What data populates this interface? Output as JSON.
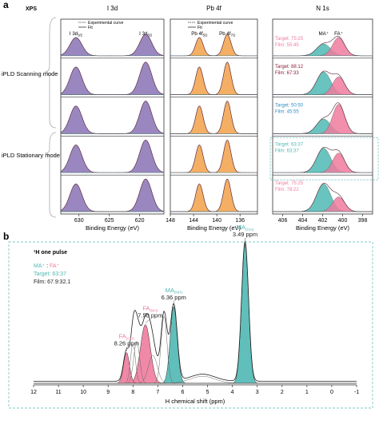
{
  "panel_a": {
    "label": "a",
    "technique": "XPS",
    "mode_labels": [
      "iPLD Scanning mode",
      "iPLD Stationary mode"
    ]
  },
  "panel_b": {
    "label": "b",
    "technique": "¹H one pulse"
  },
  "colors": {
    "purple": "#8a72b5",
    "orange": "#f2a14a",
    "teal": "#4fb8b3",
    "pink": "#ee7b9d",
    "target_blue": "#2f8fc6",
    "maroon": "#8a1f3a",
    "dashed_border": "#7fc9c5"
  },
  "chart_data": [
    {
      "type": "line",
      "name": "I 3d",
      "title": "I 3d",
      "xlabel": "Binding Energy (eV)",
      "xlim": [
        633,
        616
      ],
      "xticks": [
        630,
        625,
        620
      ],
      "legend": [
        "Experimental curve",
        "Fit"
      ],
      "peak_labels": [
        {
          "text": "I 3d",
          "sub": "3/2",
          "x": 630.5
        },
        {
          "text": "I 3d",
          "sub": "5/2",
          "x": 619.0
        }
      ],
      "peaks": [
        {
          "center": 630.5,
          "height": 0.85,
          "width": 1.0,
          "fill": "#8a72b5"
        },
        {
          "center": 619.0,
          "height": 1.0,
          "width": 1.0,
          "fill": "#8a72b5"
        }
      ],
      "rows": 5
    },
    {
      "type": "line",
      "name": "Pb 4f",
      "title": "Pb 4f",
      "xlabel": "Binding Energy (eV)",
      "xlim": [
        148,
        133
      ],
      "xticks": [
        148,
        144,
        140,
        136
      ],
      "legend": [
        "Experimental curve",
        "Fit"
      ],
      "peak_labels": [
        {
          "text": "Pb 4f",
          "sub": "5/2",
          "x": 143.0
        },
        {
          "text": "Pb 4f",
          "sub": "7/2",
          "x": 138.2
        }
      ],
      "peaks": [
        {
          "center": 143.0,
          "height": 0.85,
          "width": 0.65,
          "fill": "#f2a14a"
        },
        {
          "center": 138.2,
          "height": 1.0,
          "width": 0.65,
          "fill": "#f2a14a"
        }
      ],
      "rows": 5
    },
    {
      "type": "line",
      "name": "N 1s",
      "title": "N 1s",
      "xlabel": "Binding Energy (eV)",
      "xlim": [
        407,
        397
      ],
      "xticks": [
        406,
        404,
        402,
        400,
        398
      ],
      "peak_labels": [
        {
          "text": "MA⁺",
          "x": 401.9
        },
        {
          "text": "FA⁺",
          "x": 400.4
        }
      ],
      "rows": [
        {
          "target": "Target: 75:25",
          "film": "Film: 55:45",
          "target_color": "#ee7b9d",
          "film_color": "#ee7b9d",
          "ma": 0.55,
          "fa": 0.85
        },
        {
          "target": "Target: 88:12",
          "film": "Film: 67:33",
          "target_color": "#8a1f3a",
          "film_color": "#8a1f3a",
          "ma": 0.7,
          "fa": 0.55
        },
        {
          "target": "Target: 50:50",
          "film": "Film: 45:55",
          "target_color": "#2f8fc6",
          "film_color": "#2f8fc6",
          "ma": 0.45,
          "fa": 0.9
        },
        {
          "target": "Target: 63:37",
          "film": "Film: 63:37",
          "target_color": "#4fb8b3",
          "film_color": "#4fb8b3",
          "ma": 0.75,
          "fa": 0.6,
          "highlight": true
        },
        {
          "target": "Target: 75:25",
          "film": "Film: 78:22",
          "target_color": "#ee7b9d",
          "film_color": "#ee7b9d",
          "ma": 0.85,
          "fa": 0.45
        }
      ]
    },
    {
      "type": "line",
      "name": "1H NMR",
      "xlabel": "H chemical shift (ppm)",
      "xlim": [
        12,
        -1
      ],
      "xticks": [
        12,
        11,
        10,
        9,
        8,
        7,
        6,
        5,
        4,
        3,
        2,
        1,
        0,
        -1
      ],
      "legend_title": "MA⁺ : FA⁺",
      "target": "Target: 63:37",
      "film": "Film: 67.9:32.1",
      "annotations": [
        {
          "label": "MA",
          "sub": "(CH)",
          "value": "3.49 ppm",
          "ppm": 3.49,
          "color": "#4fb8b3"
        },
        {
          "label": "MA",
          "sub": "(NH)",
          "value": "6.36 ppm",
          "ppm": 6.36,
          "color": "#4fb8b3"
        },
        {
          "label": "FA",
          "sub": "(NH)",
          "value": "7.50 ppm",
          "ppm": 7.5,
          "color": "#ee7b9d"
        },
        {
          "label": "FA",
          "sub": "(CH)",
          "value": "8.26 ppm",
          "ppm": 8.26,
          "color": "#ee7b9d"
        }
      ],
      "components": [
        {
          "center": 3.49,
          "height": 1.0,
          "width": 0.14,
          "fill": "#4fb8b3"
        },
        {
          "center": 6.36,
          "height": 0.55,
          "width": 0.14,
          "fill": "#4fb8b3"
        },
        {
          "center": 7.5,
          "height": 0.42,
          "width": 0.2,
          "fill": "#ee7b9d"
        },
        {
          "center": 8.26,
          "height": 0.22,
          "width": 0.12,
          "fill": "#ee7b9d"
        },
        {
          "center": 6.75,
          "height": 0.48,
          "width": 0.12,
          "fill": "none"
        },
        {
          "center": 7.85,
          "height": 0.3,
          "width": 0.12,
          "fill": "none"
        },
        {
          "center": 8.0,
          "height": 0.28,
          "width": 0.1,
          "fill": "none"
        },
        {
          "center": 7.2,
          "height": 0.2,
          "width": 0.18,
          "fill": "none"
        },
        {
          "center": 5.2,
          "height": 0.05,
          "width": 0.5,
          "fill": "none"
        }
      ]
    }
  ]
}
